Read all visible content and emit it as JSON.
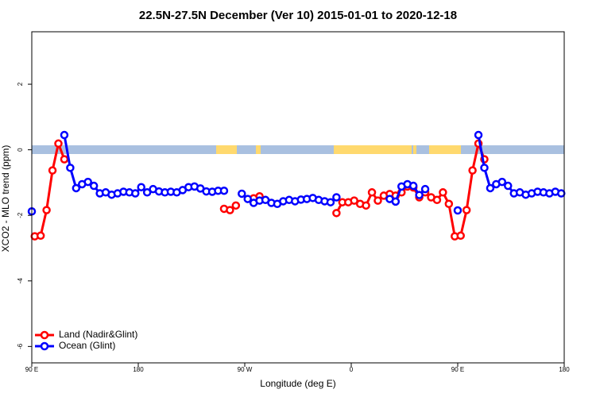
{
  "chart_data": {
    "type": "line",
    "title": "22.5N-27.5N December (Ver 10)   2015-01-01 to 2020-12-18",
    "x_label": "Longitude (deg E)",
    "y_label": "XCO2 - MLO trend (ppm)",
    "xlim": [
      90,
      540
    ],
    "ylim": [
      -6.5,
      3.6
    ],
    "xticks": [
      {
        "value": 90,
        "label": "90 E"
      },
      180,
      {
        "value": 270,
        "label": "90 W"
      },
      {
        "value": 360,
        "label": "0"
      },
      {
        "value": 450,
        "label": "90 E"
      },
      {
        "value": 540,
        "label": "180"
      }
    ],
    "yticks": [
      -6,
      -4,
      -2,
      0,
      2
    ],
    "legend": "bottom-left",
    "series": [
      {
        "name": "Land (Nadir&Glint)",
        "color": "#ff0000",
        "x": [
          92.5,
          97.5,
          102.5,
          107.5,
          112.5,
          117.5,
          122.5,
          252.5,
          257.5,
          262.5,
          267.5,
          277.5,
          282.5,
          287.5,
          347.5,
          352.5,
          357.5,
          362.5,
          367.5,
          372.5,
          377.5,
          382.5,
          387.5,
          392.5,
          397.5,
          402.5,
          407.5,
          412.5,
          417.5,
          422.5,
          427.5,
          432.5,
          437.5,
          442.5,
          447.5,
          452.5,
          457.5,
          462.5,
          467.5,
          472.5
        ],
        "values": [
          -2.64,
          -2.62,
          -1.84,
          -0.63,
          0.19,
          -0.29,
          null,
          -1.8,
          -1.84,
          -1.7,
          null,
          -1.48,
          -1.42,
          null,
          -1.93,
          -1.6,
          -1.6,
          -1.55,
          -1.65,
          -1.7,
          -1.3,
          -1.55,
          -1.4,
          -1.35,
          -1.4,
          -1.3,
          -1.12,
          -1.15,
          -1.45,
          -1.3,
          -1.45,
          -1.53,
          -1.3,
          -1.65,
          -2.64,
          -2.62,
          -1.84,
          -0.63,
          0.19,
          -0.29
        ]
      },
      {
        "name": "Ocean (Glint)",
        "color": "#0000ff",
        "x": [
          90,
          92.5,
          117.5,
          122.5,
          127.5,
          132.5,
          137.5,
          142.5,
          147.5,
          152.5,
          157.5,
          162.5,
          167.5,
          172.5,
          177.5,
          182.5,
          187.5,
          192.5,
          197.5,
          202.5,
          207.5,
          212.5,
          217.5,
          222.5,
          227.5,
          232.5,
          237.5,
          242.5,
          247.5,
          252.5,
          257.5,
          267.5,
          272.5,
          277.5,
          282.5,
          287.5,
          292.5,
          297.5,
          302.5,
          307.5,
          312.5,
          317.5,
          322.5,
          327.5,
          332.5,
          337.5,
          342.5,
          347.5,
          352.5,
          392.5,
          397.5,
          402.5,
          407.5,
          412.5,
          417.5,
          422.5,
          427.5,
          450,
          452.5,
          467.5,
          472.5,
          477.5,
          482.5,
          487.5,
          492.5,
          497.5,
          502.5,
          507.5,
          512.5,
          517.5,
          522.5,
          527.5,
          532.5,
          537.5
        ],
        "values": [
          -1.88,
          null,
          0.45,
          -0.55,
          -1.17,
          -1.05,
          -0.98,
          -1.1,
          -1.33,
          -1.3,
          -1.37,
          -1.33,
          -1.28,
          -1.3,
          -1.33,
          -1.14,
          -1.3,
          -1.2,
          -1.27,
          -1.3,
          -1.28,
          -1.3,
          -1.23,
          -1.14,
          -1.12,
          -1.18,
          -1.27,
          -1.28,
          -1.25,
          -1.25,
          null,
          -1.34,
          -1.5,
          -1.62,
          -1.55,
          -1.53,
          -1.62,
          -1.65,
          -1.57,
          -1.53,
          -1.57,
          -1.52,
          -1.5,
          -1.47,
          -1.53,
          -1.57,
          -1.6,
          -1.45,
          null,
          -1.5,
          -1.58,
          -1.12,
          -1.05,
          -1.1,
          -1.38,
          -1.2,
          null,
          -1.85,
          null,
          0.45,
          -0.55,
          -1.17,
          -1.05,
          -0.98,
          -1.1,
          -1.33,
          -1.3,
          -1.37,
          -1.33,
          -1.28,
          -1.3,
          -1.33,
          -1.28,
          -1.33
        ]
      }
    ]
  }
}
